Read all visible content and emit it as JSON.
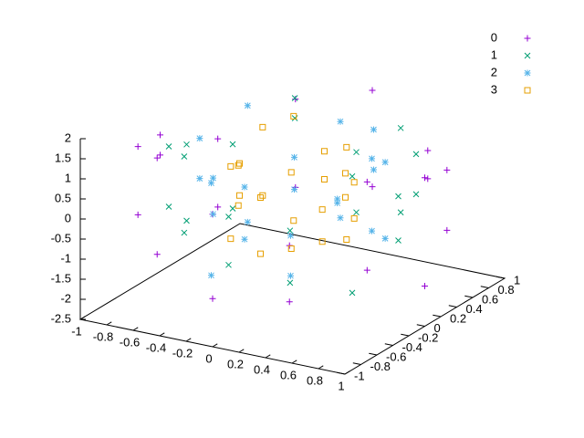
{
  "chart_data": {
    "type": "scatter3d",
    "xlim": [
      -1,
      1
    ],
    "ylim": [
      -1,
      1
    ],
    "zlim": [
      -2.5,
      2
    ],
    "xticks": [
      -1,
      -0.8,
      -0.6,
      -0.4,
      -0.2,
      0,
      0.2,
      0.4,
      0.6,
      0.8,
      1
    ],
    "yticks": [
      -1,
      -0.8,
      -0.6,
      -0.4,
      -0.2,
      0,
      0.2,
      0.4,
      0.6,
      0.8,
      1
    ],
    "zticks": [
      -2.5,
      -2,
      -1.5,
      -1,
      -0.5,
      0,
      0.5,
      1,
      1.5,
      2
    ],
    "legend": "top-right",
    "series": [
      {
        "name": "0",
        "color": "#9400d3",
        "marker": "plus",
        "x": [
          1,
          0.866,
          0.5,
          0,
          -0.5,
          -0.866,
          -1,
          -0.866,
          -0.5,
          0,
          0.5,
          0.866,
          1,
          0.866,
          0.5,
          0,
          -0.5,
          -0.866,
          -1,
          -0.866,
          -0.5,
          0,
          0.5,
          0.866
        ],
        "y": [
          0,
          0.5,
          0.866,
          1,
          0.866,
          0.5,
          0,
          -0.5,
          -0.866,
          -1,
          -0.866,
          -0.5,
          0,
          0.5,
          0.866,
          1,
          0.866,
          0.5,
          0,
          -0.5,
          -0.866,
          -1,
          -0.866,
          -0.5
        ],
        "z": [
          1.2,
          -0.8,
          0.5,
          1.5,
          -1.1,
          0.3,
          0.9,
          -0.4,
          1.7,
          -1.3,
          0.2,
          -0.6,
          -1.5,
          0.7,
          -0.2,
          -0.9,
          1.1,
          -1.4,
          0.4,
          1.3,
          -0.7,
          0.8,
          -1.2,
          1.6
        ]
      },
      {
        "name": "1",
        "color": "#009e73",
        "marker": "cross",
        "x": [
          0.8,
          0.693,
          0.4,
          0,
          -0.4,
          -0.693,
          -0.8,
          -0.693,
          -0.4,
          0,
          0.4,
          0.693,
          0.8,
          0.693,
          0.4,
          0,
          -0.4,
          -0.693,
          -0.8,
          -0.693,
          -0.4,
          0,
          0.4,
          0.693
        ],
        "y": [
          0,
          0.4,
          0.693,
          0.8,
          0.693,
          0.4,
          0,
          -0.4,
          -0.693,
          -0.8,
          -0.693,
          -0.4,
          0,
          0.4,
          0.693,
          0.8,
          0.693,
          0.4,
          0,
          -0.4,
          -0.693,
          -0.8,
          -0.693,
          -0.4
        ],
        "z": [
          0.6,
          1.1,
          -0.9,
          0.2,
          1.4,
          -1.2,
          0.8,
          1.3,
          -0.3,
          0.5,
          -1,
          1.5,
          -0.5,
          0.1,
          1.2,
          -1.3,
          0.9,
          0.4,
          -1.1,
          -0.2,
          1.6,
          -0.7,
          0.3,
          -1.4
        ]
      },
      {
        "name": "2",
        "color": "#56b4e9",
        "marker": "star",
        "x": [
          0.6,
          0.52,
          0.3,
          0,
          -0.3,
          -0.52,
          -0.6,
          -0.52,
          -0.3,
          0,
          0.3,
          0.52,
          0.6,
          0.52,
          0.3,
          0,
          -0.3,
          -0.52,
          -0.6,
          -0.52,
          -0.3,
          0,
          0.3,
          0.52
        ],
        "y": [
          0,
          0.3,
          0.52,
          0.6,
          0.52,
          0.3,
          0,
          -0.3,
          -0.52,
          -0.6,
          -0.52,
          -0.3,
          0,
          0.3,
          0.52,
          0.6,
          0.52,
          0.3,
          0,
          -0.3,
          -0.52,
          -0.6,
          -0.52,
          -0.3
        ],
        "z": [
          -0.4,
          0.9,
          1.3,
          -1.2,
          0.2,
          1.6,
          -0.8,
          0.5,
          -1.5,
          1,
          -0.1,
          0.7,
          1.4,
          -1,
          0.3,
          1.2,
          -0.6,
          -1.3,
          0.1,
          1.5,
          0.8,
          -0.3,
          -1.1,
          0.6
        ]
      },
      {
        "name": "3",
        "color": "#e69f00",
        "marker": "square",
        "x": [
          0.4,
          0.346,
          0.2,
          0,
          -0.2,
          -0.346,
          -0.4,
          -0.346,
          -0.2,
          0,
          0.2,
          0.346,
          0.4,
          0.346,
          0.2,
          0,
          -0.2,
          -0.346,
          -0.4,
          -0.346,
          -0.2,
          0,
          0.2,
          0.346
        ],
        "y": [
          0,
          0.2,
          0.346,
          0.4,
          0.346,
          0.2,
          0,
          -0.2,
          -0.346,
          -0.4,
          -0.346,
          -0.2,
          0,
          0.2,
          0.346,
          0.4,
          0.346,
          0.2,
          0,
          -0.2,
          -0.346,
          -0.4,
          -0.346,
          -0.2
        ],
        "z": [
          0.3,
          -0.5,
          1,
          0.7,
          -1.1,
          1.3,
          -0.2,
          0.8,
          0.1,
          -0.9,
          1.2,
          -0.6,
          0.9,
          0.4,
          -1.3,
          0,
          1.5,
          -0.4,
          0.6,
          -1,
          1.1,
          0.5,
          -0.7,
          0.2
        ]
      }
    ]
  }
}
